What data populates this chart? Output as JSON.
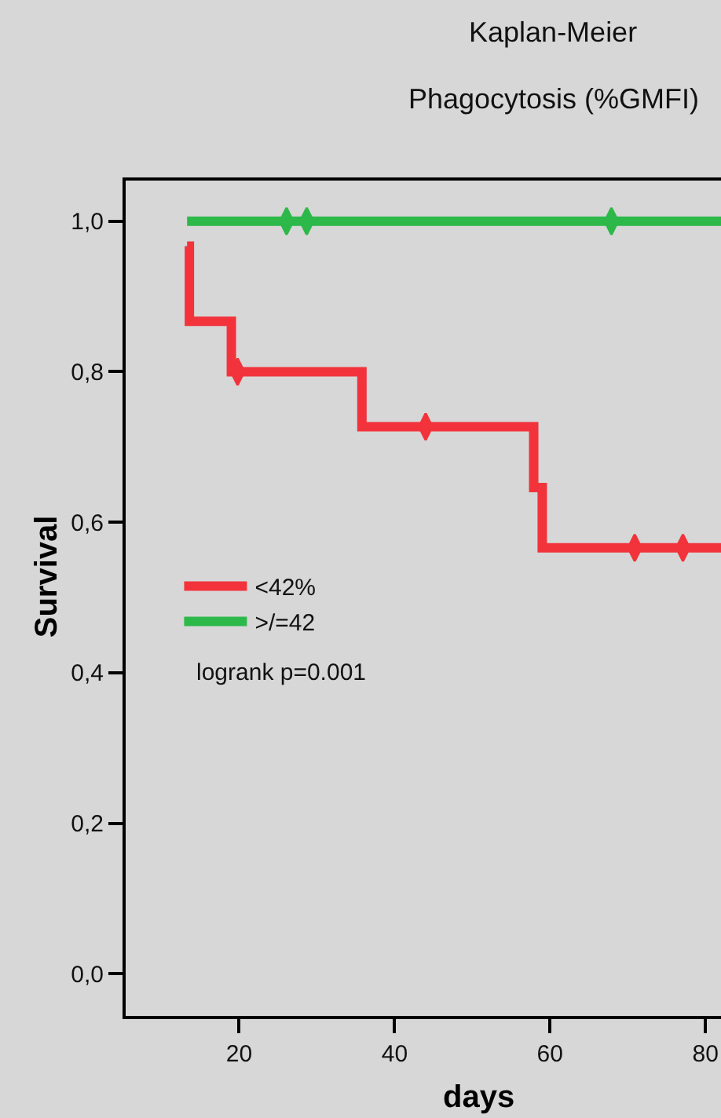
{
  "chart_data": {
    "type": "step",
    "title": "Kaplan-Meier",
    "subtitle": "Phagocytosis (%GMFI)",
    "xlabel": "days",
    "ylabel": "Survival",
    "xlim": [
      5.4,
      82
    ],
    "xticks": [
      20,
      40,
      60,
      80
    ],
    "ylim": [
      -0.056,
      1.054
    ],
    "yticks": [
      {
        "value": 0,
        "label": "0,0"
      },
      {
        "value": 0.2,
        "label": "0,2"
      },
      {
        "value": 0.4,
        "label": "0,4"
      },
      {
        "value": 0.6,
        "label": "0,6"
      },
      {
        "value": 0.8,
        "label": "0,8"
      },
      {
        "value": 1,
        "label": "1,0"
      }
    ],
    "series": [
      {
        "name": "<42%",
        "color": "#f2333b",
        "x": [
          13.3,
          13.6,
          19,
          35.8,
          57.9,
          59,
          82
        ],
        "values": [
          0.967,
          0.867,
          0.8,
          0.727,
          0.646,
          0.566,
          0.566
        ]
      },
      {
        "name": ">/=42",
        "color": "#2db84a",
        "x": [
          13.3,
          82
        ],
        "values": [
          1,
          1
        ]
      },
      {
        "type": "scatter",
        "color": "#f2333b",
        "x": [
          19.8,
          44,
          70.9,
          77.1
        ],
        "values": [
          0.8,
          0.727,
          0.566,
          0.566
        ]
      },
      {
        "type": "scatter",
        "color": "#2db84a",
        "x": [
          26.1,
          28.7,
          67.9
        ],
        "values": [
          1,
          1,
          1
        ]
      }
    ],
    "legend": "left",
    "annotations": [
      "logrank p=0.001"
    ]
  }
}
